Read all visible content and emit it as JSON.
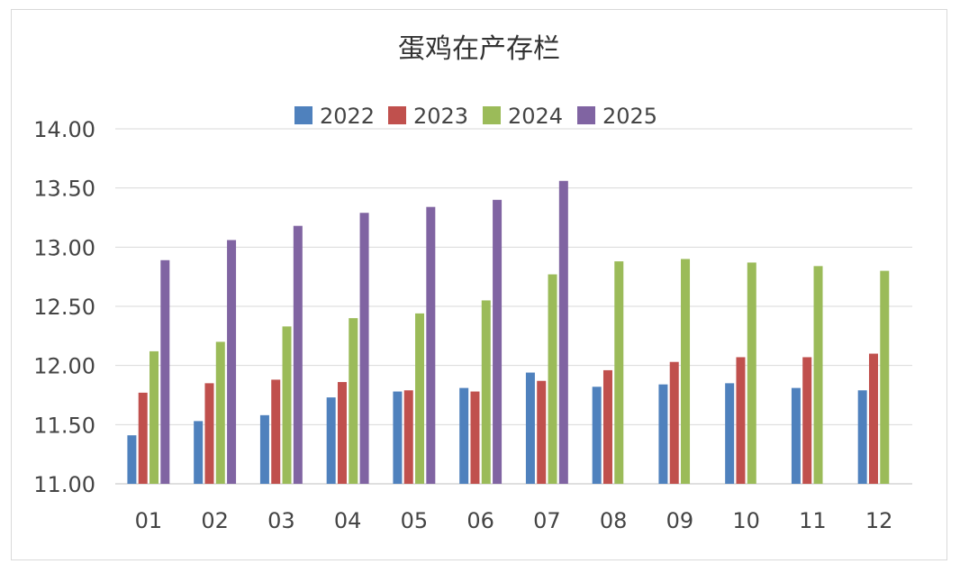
{
  "chart_data": {
    "type": "bar",
    "title": "蛋鸡在产存栏",
    "categories": [
      "01",
      "02",
      "03",
      "04",
      "05",
      "06",
      "07",
      "08",
      "09",
      "10",
      "11",
      "12"
    ],
    "series": [
      {
        "name": "2022",
        "color": "#4f81bd",
        "values": [
          11.41,
          11.53,
          11.58,
          11.73,
          11.78,
          11.81,
          11.94,
          11.82,
          11.84,
          11.85,
          11.81,
          11.79
        ]
      },
      {
        "name": "2023",
        "color": "#c0504d",
        "values": [
          11.77,
          11.85,
          11.88,
          11.86,
          11.79,
          11.78,
          11.87,
          11.96,
          12.03,
          12.07,
          12.07,
          12.1
        ]
      },
      {
        "name": "2024",
        "color": "#9bbb59",
        "values": [
          12.12,
          12.2,
          12.33,
          12.4,
          12.44,
          12.55,
          12.77,
          12.88,
          12.9,
          12.87,
          12.84,
          12.8
        ]
      },
      {
        "name": "2025",
        "color": "#8064a2",
        "values": [
          12.89,
          13.06,
          13.18,
          13.29,
          13.34,
          13.4,
          13.56,
          null,
          null,
          null,
          null,
          null
        ]
      }
    ],
    "ylim": [
      11.0,
      14.0
    ],
    "yticks": [
      "11.00",
      "11.50",
      "12.00",
      "12.50",
      "13.00",
      "13.50",
      "14.00"
    ],
    "grid": true,
    "legend_position": "top"
  }
}
